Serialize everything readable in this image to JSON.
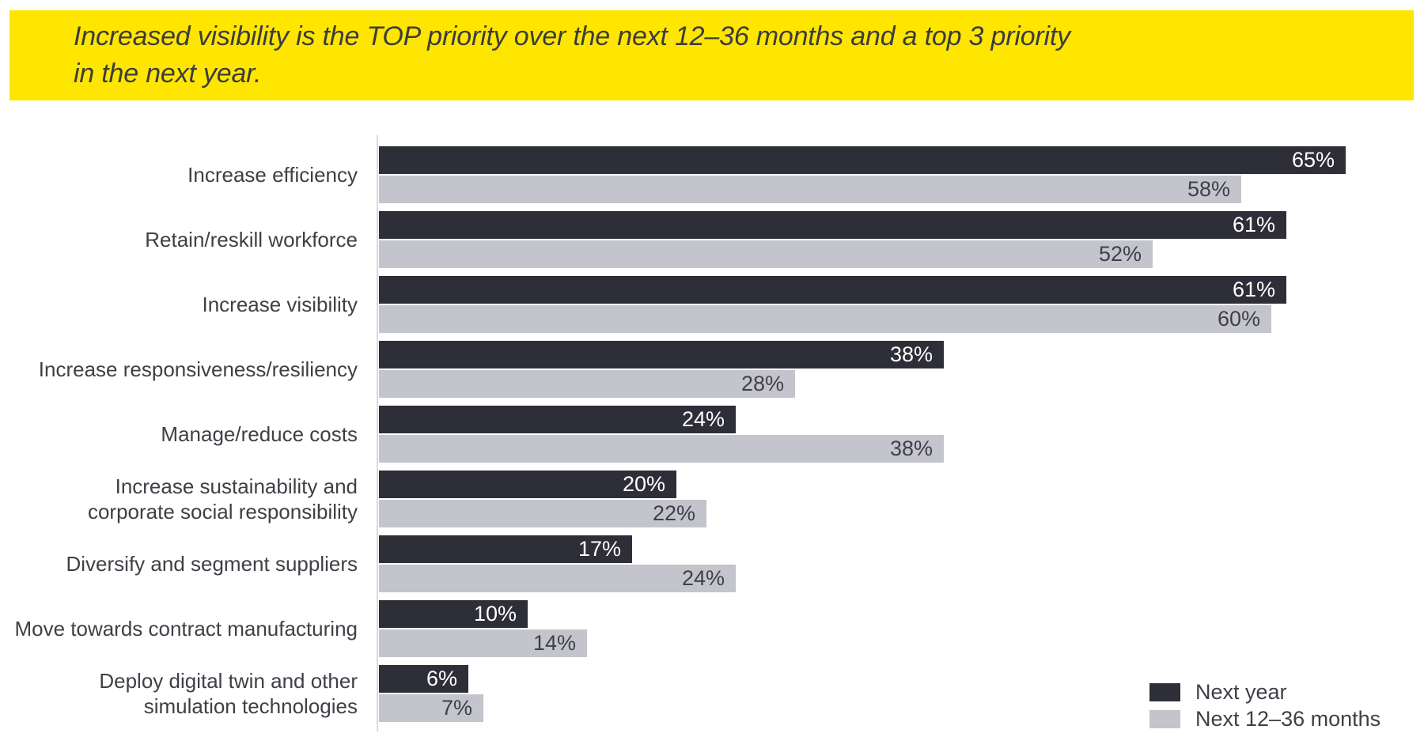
{
  "banner": {
    "title": "Increased visibility is the TOP priority over the next 12–36 months and a top 3 priority\nin the next year.",
    "bg_color": "#FFE600",
    "text_color": "#3C3C3C"
  },
  "chart_data": {
    "type": "bar",
    "orientation": "horizontal",
    "title": "Increased visibility is the TOP priority over the next 12–36 months and a top 3 priority in the next year.",
    "categories": [
      "Increase efficiency",
      "Retain/reskill workforce",
      "Increase visibility",
      "Increase responsiveness/resiliency",
      "Manage/reduce costs",
      "Increase sustainability and\ncorporate social responsibility",
      "Diversify and segment suppliers",
      "Move towards contract manufacturing",
      "Deploy digital twin and other\nsimulation technologies"
    ],
    "series": [
      {
        "name": "Next year",
        "color": "#2E2E38",
        "value_label_color": "#FFFFFF",
        "values": [
          65,
          61,
          61,
          38,
          24,
          20,
          17,
          10,
          6
        ]
      },
      {
        "name": "Next 12–36 months",
        "color": "#C4C4CD",
        "value_label_color": "#3F3F46",
        "values": [
          58,
          52,
          60,
          28,
          38,
          22,
          24,
          14,
          7
        ]
      }
    ],
    "value_suffix": "%",
    "xlim": [
      0,
      65
    ],
    "grid": false,
    "legend_position": "bottom-right",
    "axis_line_color": "#DADADE"
  }
}
